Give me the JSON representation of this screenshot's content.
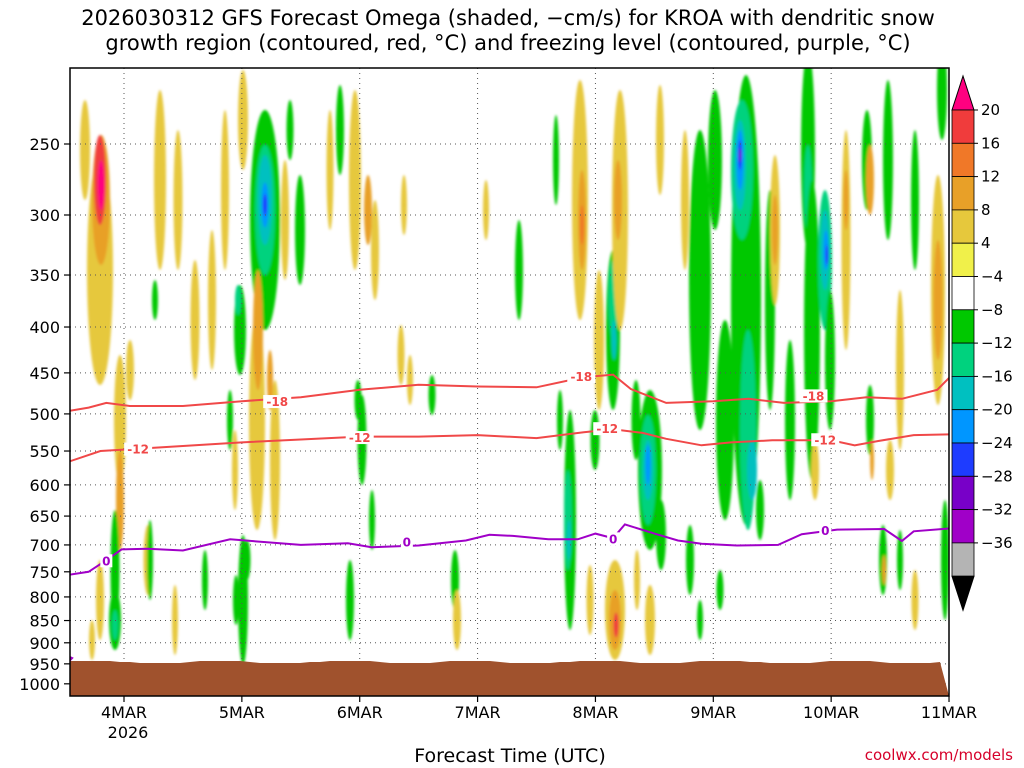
{
  "chart_data": {
    "type": "heatmap",
    "title_line1": "2026030312 GFS Forecast Omega (shaded, −cm/s) for KROA with dendritic snow",
    "title_line2": "growth region (contoured, red, °C) and freezing level (contoured, purple, °C)",
    "xlabel": "Forecast Time (UTC)",
    "credit": "coolwx.com/models",
    "x_ticks": [
      {
        "label": "4MAR",
        "day": 4
      },
      {
        "label": "5MAR",
        "day": 5
      },
      {
        "label": "6MAR",
        "day": 6
      },
      {
        "label": "7MAR",
        "day": 7
      },
      {
        "label": "8MAR",
        "day": 8
      },
      {
        "label": "9MAR",
        "day": 9
      },
      {
        "label": "10MAR",
        "day": 10
      },
      {
        "label": "11MAR",
        "day": 11
      }
    ],
    "x_year_label": "2026",
    "xlim_day": [
      3.5,
      11
    ],
    "ylim_hpa": [
      200,
      1020
    ],
    "y_ticks": [
      250,
      300,
      350,
      400,
      450,
      500,
      550,
      600,
      650,
      700,
      750,
      800,
      850,
      900,
      950,
      1000
    ],
    "y_scale": "log-pressure (inverted)",
    "grid": "dotted",
    "colorbar": {
      "labels": [
        "20",
        "16",
        "12",
        "8",
        "4",
        "−4",
        "−8",
        "−12",
        "−16",
        "−20",
        "−24",
        "−28",
        "−32",
        "−36"
      ],
      "colors": [
        "#ff0080",
        "#f03c3c",
        "#f07828",
        "#e8a028",
        "#e6c83c",
        "#f0f04a",
        "#ffffff",
        "#00c800",
        "#00d27e",
        "#00c0c0",
        "#0096ff",
        "#1e3cff",
        "#7800c8",
        "#a000c8",
        "#b4b4b4",
        "#000000"
      ]
    },
    "contours": [
      {
        "name": "-18",
        "color": "#f04848",
        "points": [
          [
            3.5,
            497
          ],
          [
            3.7,
            492
          ],
          [
            3.85,
            486
          ],
          [
            4.05,
            490
          ],
          [
            4.5,
            490
          ],
          [
            5.0,
            484
          ],
          [
            5.5,
            479
          ],
          [
            6.0,
            470
          ],
          [
            6.5,
            464
          ],
          [
            7.0,
            466
          ],
          [
            7.5,
            467
          ],
          [
            7.9,
            455
          ],
          [
            8.15,
            452
          ],
          [
            8.3,
            469
          ],
          [
            8.6,
            486
          ],
          [
            9.0,
            484
          ],
          [
            9.3,
            481
          ],
          [
            9.6,
            486
          ],
          [
            10.0,
            484
          ],
          [
            10.3,
            479
          ],
          [
            10.6,
            481
          ],
          [
            10.9,
            470
          ],
          [
            11.0,
            456
          ]
        ],
        "labels": [
          {
            "day": 5.3,
            "p": 485
          },
          {
            "day": 7.88,
            "p": 455
          },
          {
            "day": 9.85,
            "p": 478
          }
        ]
      },
      {
        "name": "-12",
        "color": "#f04848",
        "points": [
          [
            3.5,
            567
          ],
          [
            3.8,
            550
          ],
          [
            4.1,
            547
          ],
          [
            4.5,
            543
          ],
          [
            5.0,
            538
          ],
          [
            5.5,
            534
          ],
          [
            6.0,
            530
          ],
          [
            6.5,
            530
          ],
          [
            7.0,
            528
          ],
          [
            7.5,
            532
          ],
          [
            7.9,
            524
          ],
          [
            8.15,
            520
          ],
          [
            8.4,
            525
          ],
          [
            8.6,
            533
          ],
          [
            8.9,
            542
          ],
          [
            9.15,
            538
          ],
          [
            9.5,
            535
          ],
          [
            10.0,
            535
          ],
          [
            10.2,
            542
          ],
          [
            10.4,
            536
          ],
          [
            10.7,
            528
          ],
          [
            11.0,
            527
          ]
        ],
        "labels": [
          {
            "day": 4.12,
            "p": 548
          },
          {
            "day": 6.0,
            "p": 532
          },
          {
            "day": 8.1,
            "p": 520
          },
          {
            "day": 9.95,
            "p": 535
          }
        ]
      },
      {
        "name": "0",
        "color": "#a000c8",
        "points": [
          [
            3.5,
            757
          ],
          [
            3.7,
            750
          ],
          [
            3.85,
            728
          ],
          [
            3.98,
            708
          ],
          [
            4.2,
            707
          ],
          [
            4.5,
            710
          ],
          [
            4.9,
            690
          ],
          [
            5.2,
            695
          ],
          [
            5.5,
            700
          ],
          [
            5.9,
            697
          ],
          [
            6.1,
            704
          ],
          [
            6.5,
            701
          ],
          [
            6.9,
            692
          ],
          [
            7.1,
            682
          ],
          [
            7.3,
            684
          ],
          [
            7.6,
            690
          ],
          [
            7.85,
            690
          ],
          [
            8.0,
            680
          ],
          [
            8.15,
            688
          ],
          [
            8.25,
            664
          ],
          [
            8.5,
            680
          ],
          [
            8.7,
            692
          ],
          [
            8.9,
            698
          ],
          [
            9.2,
            701
          ],
          [
            9.55,
            700
          ],
          [
            9.75,
            681
          ],
          [
            10.05,
            673
          ],
          [
            10.45,
            672
          ],
          [
            10.6,
            693
          ],
          [
            10.7,
            676
          ],
          [
            11.0,
            671
          ]
        ],
        "labels": [
          {
            "day": 3.85,
            "p": 730
          },
          {
            "day": 6.4,
            "p": 696
          },
          {
            "day": 8.15,
            "p": 690
          },
          {
            "day": 9.95,
            "p": 675
          }
        ]
      }
    ],
    "freezing_fragment": [
      [
        3.5,
        928
      ],
      [
        3.56,
        936
      ],
      [
        3.52,
        948
      ]
    ],
    "ground_color": "#a0522d"
  }
}
